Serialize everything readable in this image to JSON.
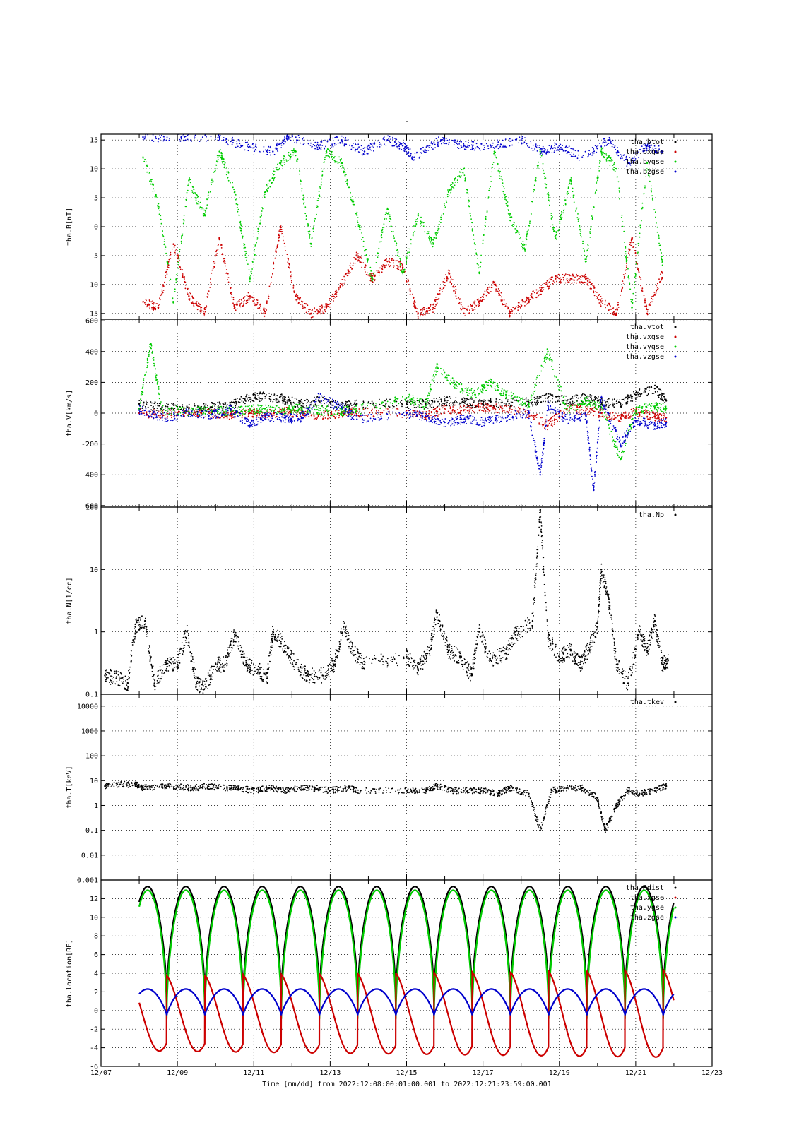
{
  "figure": {
    "title": "-",
    "time_label": "Time [mm/dd]  from 2022:12:08:00:01:00.001  to  2022:12:21:23:59:00.001"
  },
  "chart_data": [
    {
      "type": "scatter",
      "ylabel": "tha.B[nT]",
      "xlim": [
        7,
        23
      ],
      "ylim": [
        -16,
        16
      ],
      "yticks": [
        -15,
        -10,
        -5,
        0,
        5,
        10,
        15
      ],
      "ytick_labels": [
        "-15",
        "-10",
        "-5",
        "0",
        "5",
        "10",
        "15"
      ],
      "log": false,
      "legend": "top-right",
      "series": [
        {
          "name": "tha.btot",
          "color": "#000000",
          "x": [],
          "y": []
        },
        {
          "name": "tha.bxgse",
          "color": "#cc0000",
          "x": [
            8.1,
            8.5,
            8.9,
            9.3,
            9.7,
            10.1,
            10.5,
            10.9,
            11.3,
            11.7,
            12.1,
            12.5,
            12.9,
            13.3,
            13.7,
            14.1,
            14.5,
            14.9,
            15.3,
            15.7,
            16.1,
            16.5,
            16.9,
            17.3,
            17.7,
            18.1,
            18.5,
            18.9,
            19.3,
            19.7,
            20.1,
            20.5,
            20.9,
            21.3,
            21.7
          ],
          "y": [
            -13,
            -14,
            -3,
            -12,
            -15,
            -2,
            -14,
            -12,
            -15,
            0,
            -12,
            -15,
            -14,
            -10,
            -5,
            -9,
            -6,
            -7,
            -15,
            -14,
            -8,
            -15,
            -13,
            -10,
            -15,
            -13,
            -11,
            -9,
            -9,
            -9,
            -13,
            -15,
            -2,
            -15,
            -8
          ]
        },
        {
          "name": "tha.bygse",
          "color": "#00cc00",
          "x": [
            8.1,
            8.5,
            8.9,
            9.3,
            9.7,
            10.1,
            10.5,
            10.9,
            11.3,
            11.7,
            12.1,
            12.5,
            12.9,
            13.3,
            13.7,
            14.1,
            14.5,
            14.9,
            15.3,
            15.7,
            16.1,
            16.5,
            16.9,
            17.3,
            17.7,
            18.1,
            18.5,
            18.9,
            19.3,
            19.7,
            20.1,
            20.5,
            20.9,
            21.3,
            21.7
          ],
          "y": [
            12,
            4,
            -13,
            8,
            2,
            13,
            6,
            -9,
            6,
            11,
            13,
            -3,
            13,
            11,
            2,
            -9,
            3,
            -8,
            2,
            -3,
            6,
            10,
            -8,
            13,
            2,
            -4,
            13,
            -2,
            8,
            -6,
            13,
            10,
            -14,
            11,
            -6
          ]
        },
        {
          "name": "tha.bzgse",
          "color": "#0000cc",
          "x": [
            8.1,
            9.1,
            10.1,
            10.7,
            11.5,
            11.9,
            12.7,
            13.3,
            13.9,
            14.5,
            14.9,
            15.2,
            15.9,
            16.5,
            17.2,
            18.0,
            18.6,
            19.0,
            19.6,
            20.3,
            20.8,
            21.3,
            21.7
          ],
          "y": [
            15.5,
            15.5,
            15.5,
            14,
            13,
            15.5,
            14,
            15,
            13,
            15,
            14,
            12,
            15,
            14,
            14,
            15,
            13,
            14,
            12,
            15,
            11,
            14,
            13
          ]
        }
      ]
    },
    {
      "type": "scatter",
      "ylabel": "tha.V[km/s]",
      "xlim": [
        7,
        23
      ],
      "ylim": [
        -610,
        610
      ],
      "yticks": [
        -600,
        -400,
        -200,
        0,
        200,
        400,
        600
      ],
      "ytick_labels": [
        "-600",
        "-400",
        "-200",
        "0",
        "200",
        "400",
        "600"
      ],
      "log": false,
      "legend": "top-right",
      "series": [
        {
          "name": "tha.vtot",
          "color": "#000000",
          "x": [
            8.0,
            8.6,
            9.3,
            9.9,
            10.4,
            10.9,
            11.3,
            11.8,
            12.2,
            12.7,
            13.3,
            13.7,
            15.0,
            15.5,
            16.0,
            16.5,
            17.0,
            17.5,
            18.2,
            18.7,
            19.2,
            19.7,
            20.1,
            20.6,
            21.0,
            21.5,
            21.8
          ],
          "y": [
            60,
            40,
            30,
            40,
            50,
            100,
            110,
            90,
            60,
            80,
            40,
            60,
            60,
            60,
            80,
            70,
            60,
            70,
            70,
            100,
            80,
            100,
            70,
            60,
            120,
            160,
            80
          ]
        },
        {
          "name": "tha.vxgse",
          "color": "#cc0000",
          "x": [
            8.0,
            8.6,
            9.3,
            9.9,
            10.4,
            10.9,
            11.3,
            11.8,
            12.2,
            12.7,
            13.3,
            13.7,
            15.0,
            15.5,
            16.0,
            16.5,
            17.0,
            17.5,
            18.2,
            18.7,
            19.2,
            19.7,
            20.1,
            20.6,
            21.0,
            21.5,
            21.8
          ],
          "y": [
            0,
            -10,
            10,
            0,
            -10,
            0,
            -10,
            10,
            0,
            -10,
            0,
            10,
            0,
            -20,
            30,
            20,
            40,
            30,
            0,
            -80,
            30,
            20,
            0,
            -30,
            10,
            -20,
            -30
          ]
        },
        {
          "name": "tha.vygse",
          "color": "#00cc00",
          "x": [
            8.0,
            8.3,
            8.6,
            9.3,
            9.9,
            10.4,
            10.9,
            11.3,
            11.8,
            12.2,
            12.7,
            13.3,
            13.7,
            15.0,
            15.5,
            15.8,
            16.3,
            16.8,
            17.2,
            17.6,
            18.2,
            18.7,
            19.2,
            19.7,
            20.1,
            20.6,
            21.0,
            21.5,
            21.8
          ],
          "y": [
            30,
            450,
            20,
            10,
            20,
            10,
            20,
            30,
            20,
            30,
            20,
            10,
            20,
            100,
            50,
            300,
            180,
            120,
            200,
            120,
            60,
            400,
            20,
            80,
            40,
            -300,
            20,
            40,
            30
          ]
        },
        {
          "name": "tha.vzgse",
          "color": "#0000cc",
          "x": [
            8.0,
            8.6,
            9.3,
            9.9,
            10.4,
            10.9,
            11.3,
            11.8,
            12.2,
            12.7,
            13.3,
            13.7,
            15.0,
            15.5,
            16.0,
            16.5,
            17.0,
            17.5,
            18.2,
            18.5,
            18.7,
            19.2,
            19.7,
            19.9,
            20.1,
            20.6,
            21.0,
            21.5,
            21.8
          ],
          "y": [
            20,
            -30,
            0,
            -10,
            20,
            -80,
            -20,
            -30,
            -40,
            100,
            40,
            -40,
            0,
            -20,
            -60,
            -40,
            -60,
            -30,
            0,
            -400,
            50,
            -40,
            -20,
            -500,
            100,
            -200,
            -50,
            -80,
            -60
          ]
        }
      ]
    },
    {
      "type": "scatter",
      "ylabel": "tha.N[1/cc]",
      "xlim": [
        7,
        23
      ],
      "ylim": [
        0.1,
        100
      ],
      "yticks": [
        0.1,
        1,
        10,
        100
      ],
      "ytick_labels": [
        "0.1",
        "1",
        "10",
        "100"
      ],
      "log": true,
      "legend": "top-right",
      "series": [
        {
          "name": "tha.Np",
          "color": "#000000",
          "x": [
            7.1,
            7.4,
            7.7,
            7.9,
            8.15,
            8.4,
            8.7,
            9.0,
            9.25,
            9.5,
            9.7,
            10.0,
            10.25,
            10.5,
            10.8,
            11.1,
            11.35,
            11.5,
            11.8,
            12.1,
            12.4,
            12.8,
            13.1,
            13.35,
            13.6,
            13.9,
            15.0,
            15.3,
            15.6,
            15.8,
            16.1,
            16.4,
            16.7,
            16.9,
            17.2,
            17.6,
            17.85,
            18.3,
            18.5,
            18.7,
            19.0,
            19.3,
            19.55,
            19.75,
            20.0,
            20.1,
            20.3,
            20.5,
            20.8,
            21.1,
            21.3,
            21.5,
            21.7,
            21.85
          ],
          "y": [
            0.2,
            0.18,
            0.15,
            1.2,
            1.5,
            0.15,
            0.3,
            0.3,
            1.0,
            0.15,
            0.12,
            0.3,
            0.3,
            0.9,
            0.3,
            0.25,
            0.18,
            1.0,
            0.6,
            0.3,
            0.2,
            0.2,
            0.3,
            1.2,
            0.5,
            0.3,
            0.4,
            0.25,
            0.5,
            2.0,
            0.5,
            0.4,
            0.2,
            1.0,
            0.35,
            0.45,
            0.9,
            1.5,
            90,
            0.8,
            0.4,
            0.5,
            0.3,
            0.5,
            1.2,
            10,
            3,
            0.3,
            0.15,
            1.0,
            0.5,
            1.5,
            0.3,
            0.35
          ]
        }
      ]
    },
    {
      "type": "scatter",
      "ylabel": "tha.T[keV]",
      "xlim": [
        7,
        23
      ],
      "ylim": [
        0.001,
        30000
      ],
      "yticks": [
        0.001,
        0.01,
        0.1,
        1,
        10,
        100,
        1000,
        10000
      ],
      "ytick_labels": [
        "0.001",
        "0.01",
        "0.1",
        "1",
        "10",
        "100",
        "1000",
        "10000"
      ],
      "log": true,
      "legend": "top-right",
      "series": [
        {
          "name": "tha.tkev",
          "color": "#000000",
          "x": [
            7.1,
            7.5,
            7.9,
            8.1,
            8.6,
            9.0,
            9.4,
            9.8,
            10.3,
            10.6,
            11.0,
            11.4,
            11.8,
            12.2,
            12.6,
            13.0,
            13.4,
            13.8,
            15.0,
            15.5,
            15.8,
            16.2,
            16.6,
            17.0,
            17.4,
            17.7,
            18.2,
            18.5,
            18.8,
            19.2,
            19.6,
            20.0,
            20.2,
            20.5,
            20.8,
            21.1,
            21.5,
            21.8
          ],
          "y": [
            6,
            7,
            7,
            5,
            6,
            6,
            5,
            6,
            5,
            5,
            4,
            5,
            4,
            5,
            5,
            4,
            5,
            4,
            4,
            4,
            6,
            4,
            4,
            4,
            3,
            5,
            3,
            0.1,
            4,
            5,
            5,
            2,
            0.1,
            1,
            4,
            3,
            4,
            6
          ]
        }
      ]
    },
    {
      "type": "line",
      "ylabel": "tha.location[RE]",
      "xlabel": "Time [mm/dd]  from 2022:12:08:00:01:00.001  to  2022:12:21:23:59:00.001",
      "xlim": [
        7,
        23
      ],
      "ylim": [
        -6,
        14
      ],
      "yticks": [
        -6,
        -4,
        -2,
        0,
        2,
        4,
        6,
        8,
        10,
        12
      ],
      "ytick_labels": [
        "-6",
        "-4",
        "-2",
        "0",
        "2",
        "4",
        "6",
        "8",
        "10",
        "12"
      ],
      "xticks": [
        7,
        9,
        11,
        13,
        15,
        17,
        19,
        21,
        23
      ],
      "xtick_labels": [
        "12/07",
        "12/09",
        "12/11",
        "12/13",
        "12/15",
        "12/17",
        "12/19",
        "12/21",
        "12/23"
      ],
      "log": false,
      "legend": "top-right",
      "orbit": {
        "start": 8.0,
        "end": 22.0,
        "period": 1.0,
        "perigee": 8.72,
        "apogee_re": 13.3,
        "perigee_re": 0.9
      },
      "series": [
        {
          "name": "tha.Rdist",
          "color": "#000000",
          "x": [],
          "y": []
        },
        {
          "name": "tha.xgse",
          "color": "#cc0000",
          "x": [
            8.0,
            8.3,
            8.55,
            8.72,
            8.9,
            9.2,
            9.55,
            9.72,
            10.6,
            11.72,
            12.6,
            13.72,
            14.6,
            15.72,
            16.6,
            17.72,
            18.6,
            19.72,
            20.6,
            21.72,
            22.0
          ],
          "y": [
            0.2,
            -3.0,
            -4.2,
            -1.0,
            3.4,
            1.5,
            -4.2,
            -1.0,
            -4.0,
            3.7,
            -3.8,
            3.9,
            -3.6,
            4.1,
            -3.5,
            4.3,
            -3.4,
            4.5,
            -3.3,
            4.7,
            -0.8
          ]
        },
        {
          "name": "tha.ygse",
          "color": "#00cc00",
          "x": [
            8.0,
            8.2,
            8.5,
            8.72,
            8.95,
            9.2,
            9.5,
            9.72
          ],
          "y": [
            12.8,
            13.2,
            10.0,
            -0.6,
            10.0,
            13.2,
            10.0,
            -0.6
          ]
        },
        {
          "name": "tha.zgse",
          "color": "#0000cc",
          "x": [
            8.0,
            8.3,
            8.55,
            8.72,
            8.95,
            9.2,
            9.5,
            9.72,
            22.0
          ],
          "y": [
            2.2,
            1.6,
            0.6,
            -0.5,
            1.6,
            2.2,
            1.6,
            -0.5,
            1.3
          ]
        }
      ]
    }
  ]
}
